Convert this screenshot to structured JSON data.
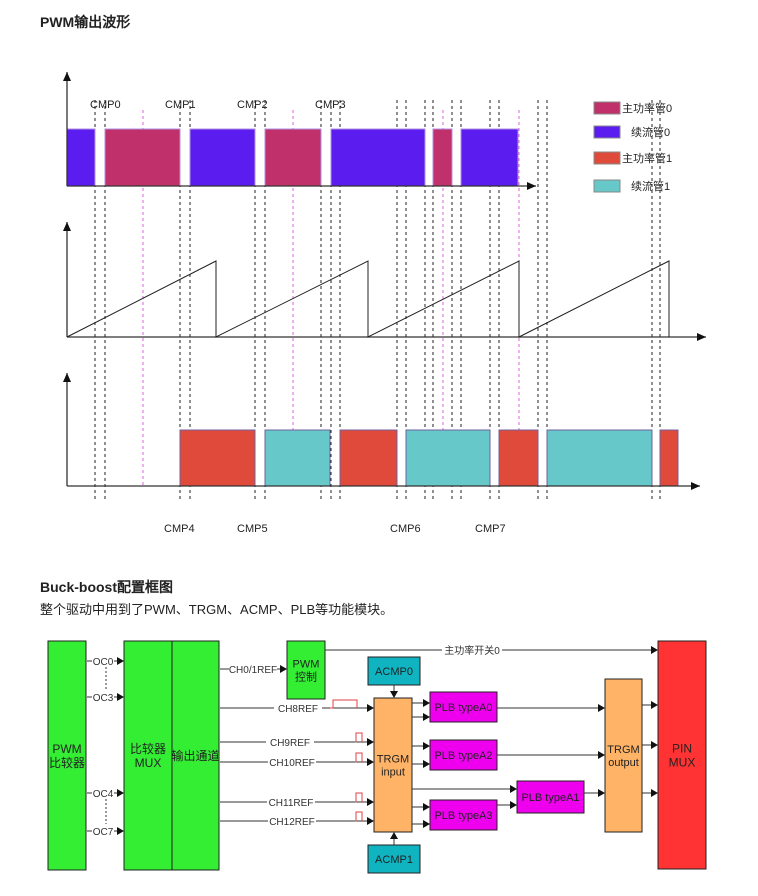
{
  "section1": {
    "title": "PWM输出波形"
  },
  "waveform": {
    "cmp_top": [
      "CMP0",
      "CMP1",
      "CMP2",
      "CMP3"
    ],
    "cmp_bottom": [
      "CMP4",
      "CMP5",
      "CMP6",
      "CMP7"
    ],
    "legend": [
      {
        "label": "主功率管0",
        "color": "#c0306a"
      },
      {
        "label": "续流管0",
        "color": "#5b1cf0"
      },
      {
        "label": "主功率管1",
        "color": "#e04a3a"
      },
      {
        "label": "续流管1",
        "color": "#66c8c8"
      }
    ]
  },
  "section2": {
    "title": "Buck-boost配置框图",
    "desc": "整个驱动中用到了PWM、TRGM、ACMP、PLB等功能模块。"
  },
  "diagram": {
    "pwm_comp": "PWM\n比较器",
    "mux": "比较器\nMUX",
    "out_ch": "输出通道",
    "pwm_ctrl": "PWM\n控制",
    "oc": [
      "OC0",
      "OC3",
      "OC4",
      "OC7"
    ],
    "ch": [
      "CH0/1REF",
      "CH8REF",
      "CH9REF",
      "CH10REF",
      "CH11REF",
      "CH12REF"
    ],
    "acmp0": "ACMP0",
    "acmp1": "ACMP1",
    "trgm_in": "TRGM\ninput",
    "trgm_out": "TRGM\noutput",
    "plb": [
      "PLB typeA0",
      "PLB typeA2",
      "PLB typeA3",
      "PLB typeA1"
    ],
    "pin_mux": "PIN\nMUX",
    "main_switch": "主功率开关0",
    "colors": {
      "green": "#33ee33",
      "orange": "#ffb366",
      "teal": "#10b4c0",
      "magenta": "#ee00ee",
      "red": "#ff3333"
    }
  }
}
